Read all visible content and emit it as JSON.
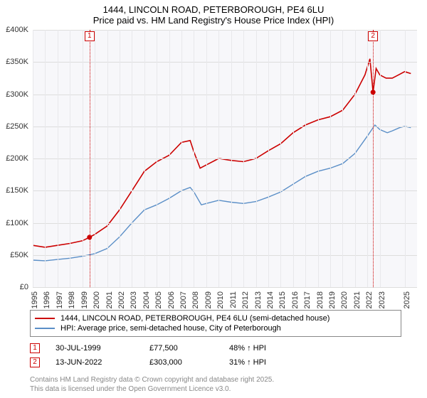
{
  "title": {
    "line1": "1444, LINCOLN ROAD, PETERBOROUGH, PE4 6LU",
    "line2": "Price paid vs. HM Land Registry's House Price Index (HPI)"
  },
  "chart": {
    "type": "line",
    "background_color": "#f7f7fa",
    "grid_color": "#dddddd",
    "font_size_axis": 11,
    "font_color": "#333333",
    "x": {
      "min": 1995,
      "max": 2026,
      "step": 1,
      "labels": [
        "1995",
        "1996",
        "1997",
        "1998",
        "1999",
        "2000",
        "2001",
        "2002",
        "2003",
        "2004",
        "2005",
        "2006",
        "2007",
        "2008",
        "2009",
        "2010",
        "2011",
        "2012",
        "2013",
        "2014",
        "2015",
        "2016",
        "2017",
        "2018",
        "2019",
        "2020",
        "2021",
        "2022",
        "2023",
        "2025"
      ]
    },
    "y": {
      "min": 0,
      "max": 400000,
      "step": 50000,
      "labels": [
        "£0",
        "£50K",
        "£100K",
        "£150K",
        "£200K",
        "£250K",
        "£300K",
        "£350K",
        "£400K"
      ],
      "values": [
        0,
        50000,
        100000,
        150000,
        200000,
        250000,
        300000,
        350000,
        400000
      ]
    },
    "series": [
      {
        "id": "price_paid",
        "label": "1444, LINCOLN ROAD, PETERBOROUGH, PE4 6LU (semi-detached house)",
        "color": "#cc0000",
        "line_width": 1.6,
        "points": [
          [
            1995,
            65000
          ],
          [
            1996,
            62000
          ],
          [
            1997,
            65000
          ],
          [
            1998,
            68000
          ],
          [
            1999,
            72000
          ],
          [
            1999.58,
            77500
          ],
          [
            2000,
            82000
          ],
          [
            2001,
            95000
          ],
          [
            2002,
            120000
          ],
          [
            2003,
            150000
          ],
          [
            2004,
            180000
          ],
          [
            2005,
            195000
          ],
          [
            2006,
            205000
          ],
          [
            2007,
            225000
          ],
          [
            2007.7,
            228000
          ],
          [
            2008,
            210000
          ],
          [
            2008.5,
            185000
          ],
          [
            2009,
            190000
          ],
          [
            2010,
            200000
          ],
          [
            2011,
            197000
          ],
          [
            2012,
            195000
          ],
          [
            2013,
            200000
          ],
          [
            2014,
            212000
          ],
          [
            2015,
            223000
          ],
          [
            2016,
            240000
          ],
          [
            2017,
            252000
          ],
          [
            2018,
            260000
          ],
          [
            2019,
            265000
          ],
          [
            2020,
            275000
          ],
          [
            2021,
            300000
          ],
          [
            2021.8,
            330000
          ],
          [
            2022.2,
            355000
          ],
          [
            2022.45,
            303000
          ],
          [
            2022.7,
            340000
          ],
          [
            2023,
            330000
          ],
          [
            2023.5,
            325000
          ],
          [
            2024,
            325000
          ],
          [
            2024.5,
            330000
          ],
          [
            2025,
            335000
          ],
          [
            2025.5,
            332000
          ]
        ]
      },
      {
        "id": "hpi",
        "label": "HPI: Average price, semi-detached house, City of Peterborough",
        "color": "#5b8fc7",
        "line_width": 1.4,
        "points": [
          [
            1995,
            42000
          ],
          [
            1996,
            41000
          ],
          [
            1997,
            43000
          ],
          [
            1998,
            45000
          ],
          [
            1999,
            48000
          ],
          [
            2000,
            52000
          ],
          [
            2001,
            60000
          ],
          [
            2002,
            78000
          ],
          [
            2003,
            100000
          ],
          [
            2004,
            120000
          ],
          [
            2005,
            128000
          ],
          [
            2006,
            138000
          ],
          [
            2007,
            150000
          ],
          [
            2007.7,
            155000
          ],
          [
            2008,
            148000
          ],
          [
            2008.6,
            128000
          ],
          [
            2009,
            130000
          ],
          [
            2010,
            135000
          ],
          [
            2011,
            132000
          ],
          [
            2012,
            130000
          ],
          [
            2013,
            133000
          ],
          [
            2014,
            140000
          ],
          [
            2015,
            148000
          ],
          [
            2016,
            160000
          ],
          [
            2017,
            172000
          ],
          [
            2018,
            180000
          ],
          [
            2019,
            185000
          ],
          [
            2020,
            192000
          ],
          [
            2021,
            208000
          ],
          [
            2022,
            235000
          ],
          [
            2022.6,
            252000
          ],
          [
            2023,
            245000
          ],
          [
            2023.6,
            240000
          ],
          [
            2024,
            243000
          ],
          [
            2024.6,
            248000
          ],
          [
            2025,
            250000
          ],
          [
            2025.5,
            248000
          ]
        ]
      }
    ],
    "markers": [
      {
        "n": "1",
        "x": 1999.58,
        "y": 77500,
        "color": "#cc0000"
      },
      {
        "n": "2",
        "x": 2022.45,
        "y": 303000,
        "color": "#cc0000"
      }
    ]
  },
  "legend": {
    "rows": [
      {
        "color": "#cc0000",
        "text": "1444, LINCOLN ROAD, PETERBOROUGH, PE4 6LU (semi-detached house)"
      },
      {
        "color": "#5b8fc7",
        "text": "HPI: Average price, semi-detached house, City of Peterborough"
      }
    ]
  },
  "trades": [
    {
      "n": "1",
      "color": "#cc0000",
      "date": "30-JUL-1999",
      "price": "£77,500",
      "delta": "48% ↑ HPI"
    },
    {
      "n": "2",
      "color": "#cc0000",
      "date": "13-JUN-2022",
      "price": "£303,000",
      "delta": "31% ↑ HPI"
    }
  ],
  "footer": {
    "line1": "Contains HM Land Registry data © Crown copyright and database right 2025.",
    "line2": "This data is licensed under the Open Government Licence v3.0."
  }
}
